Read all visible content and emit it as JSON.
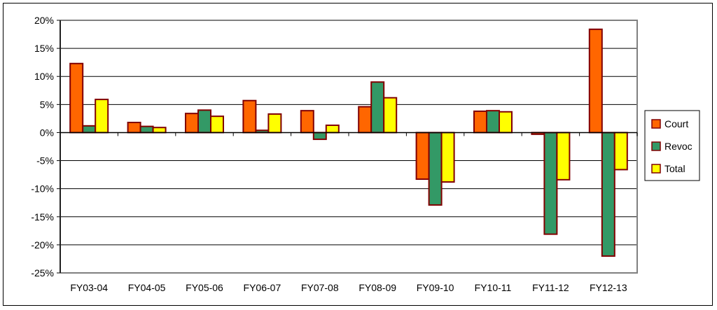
{
  "chart_data": {
    "type": "bar",
    "categories": [
      "FY03-04",
      "FY04-05",
      "FY05-06",
      "FY06-07",
      "FY07-08",
      "FY08-09",
      "FY09-10",
      "FY10-11",
      "FY11-12",
      "FY12-13"
    ],
    "series": [
      {
        "name": "Court",
        "values": [
          12.3,
          1.8,
          3.4,
          5.7,
          3.9,
          4.6,
          -8.3,
          3.8,
          -0.3,
          18.4
        ],
        "color": "#ff6600"
      },
      {
        "name": "Revoc",
        "values": [
          1.2,
          1.1,
          4.0,
          0.4,
          -1.2,
          9.0,
          -12.9,
          3.9,
          -18.1,
          -22.0
        ],
        "color": "#339966"
      },
      {
        "name": "Total",
        "values": [
          5.9,
          0.9,
          2.9,
          3.3,
          1.3,
          6.2,
          -8.8,
          3.7,
          -8.4,
          -6.6
        ],
        "color": "#ffff00"
      }
    ],
    "ylim": [
      -25,
      20
    ],
    "yticks": [
      20,
      15,
      10,
      5,
      0,
      -5,
      -10,
      -15,
      -20,
      -25
    ],
    "ytick_labels": [
      "20%",
      "15%",
      "10%",
      "5%",
      "0%",
      "-5%",
      "-10%",
      "-15%",
      "-20%",
      "-25%"
    ],
    "grid": true,
    "legend_position": "right",
    "bar_edge_color": "#800000"
  }
}
